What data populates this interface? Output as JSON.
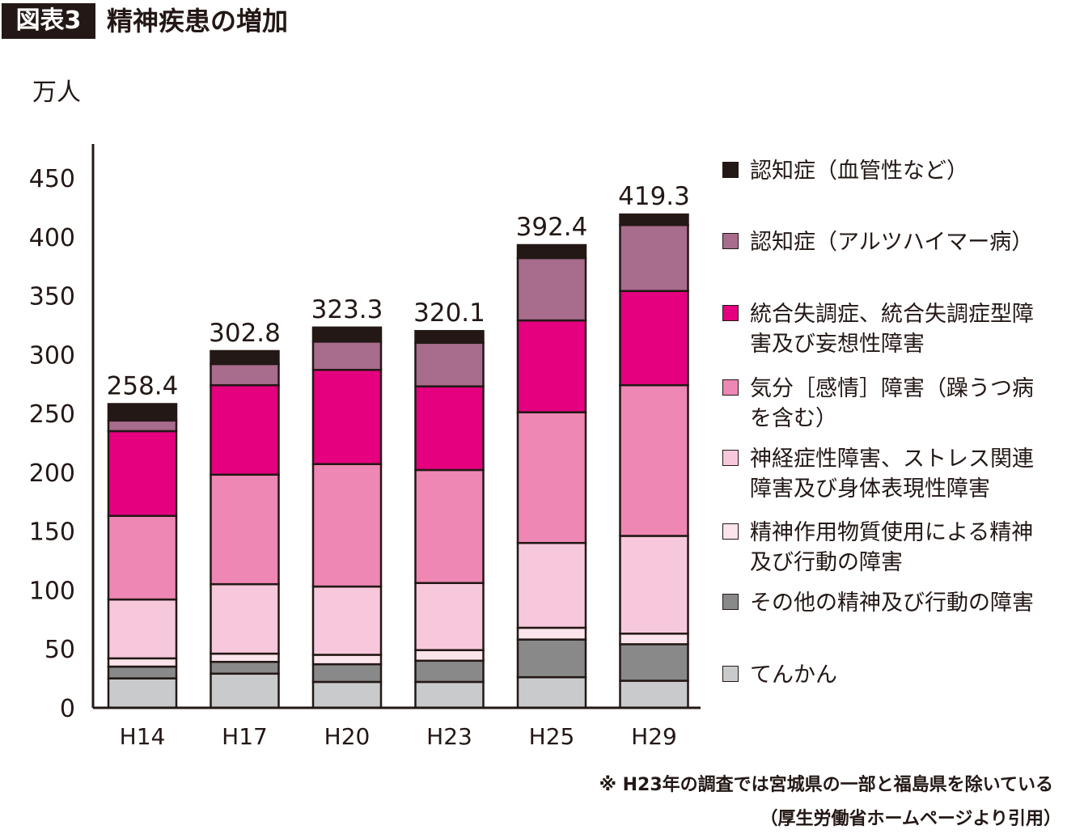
{
  "figure": {
    "badge": "図表3",
    "title": "精神疾患の増加",
    "note": "※ H23年の調査では宮城県の一部と福島県を除いている",
    "source": "（厚生労働省ホームページより引用）"
  },
  "chart_data": {
    "type": "bar",
    "stacked": true,
    "title": "精神疾患の増加",
    "ylabel": "万人",
    "xlabel": "",
    "ylim": [
      0,
      450
    ],
    "yticks": [
      0,
      50,
      100,
      150,
      200,
      250,
      300,
      350,
      400,
      450
    ],
    "categories": [
      "H14",
      "H17",
      "H20",
      "H23",
      "H25",
      "H29"
    ],
    "totals": [
      "258.4",
      "302.8",
      "323.3",
      "320.1",
      "392.4",
      "419.3"
    ],
    "legend_position": "right",
    "series": [
      {
        "name": "てんかん",
        "color": "#c9cacb",
        "values": [
          25,
          29,
          22,
          22,
          26,
          23
        ]
      },
      {
        "name": "その他の精神及び行動の障害",
        "color": "#898989",
        "values": [
          10,
          10,
          15,
          18,
          32,
          31
        ]
      },
      {
        "name": "精神作用物質使用による精神及び行動の障害",
        "color": "#fce4ec",
        "values": [
          7,
          7,
          8,
          9,
          10,
          9
        ]
      },
      {
        "name": "神経症性障害、ストレス関連障害及び身体表現性障害",
        "color": "#f7c8dc",
        "values": [
          50,
          59,
          58,
          57,
          72,
          83
        ]
      },
      {
        "name": "気分［感情］障害（躁うつ病を含む）",
        "color": "#ee87b4",
        "values": [
          71,
          93,
          104,
          96,
          111,
          128
        ]
      },
      {
        "name": "統合失調症、統合失調症型障害及び妄想性障害",
        "color": "#e4007f",
        "values": [
          72,
          76,
          80,
          71,
          78,
          80
        ]
      },
      {
        "name": "認知症（アルツハイマー病）",
        "color": "#a86c8d",
        "values": [
          9,
          18,
          24,
          37,
          53,
          56
        ]
      },
      {
        "name": "認知症（血管性など）",
        "color": "#231815",
        "values": [
          14,
          11,
          12,
          10,
          11,
          9
        ]
      }
    ]
  },
  "legend": [
    {
      "label": "認知症（血管性など）",
      "color": "#231815"
    },
    {
      "label": "認知症（アルツハイマー病）",
      "color": "#a86c8d"
    },
    {
      "label": "統合失調症、統合失調症型障害及び妄想性障害",
      "color": "#e4007f"
    },
    {
      "label": "気分［感情］障害（躁うつ病を含む）",
      "color": "#ee87b4"
    },
    {
      "label": "神経症性障害、ストレス関連障害及び身体表現性障害",
      "color": "#f7c8dc"
    },
    {
      "label": "精神作用物質使用による精神及び行動の障害",
      "color": "#fce4ec"
    },
    {
      "label": "その他の精神及び行動の障害",
      "color": "#898989"
    },
    {
      "label": "てんかん",
      "color": "#c9cacb"
    }
  ]
}
